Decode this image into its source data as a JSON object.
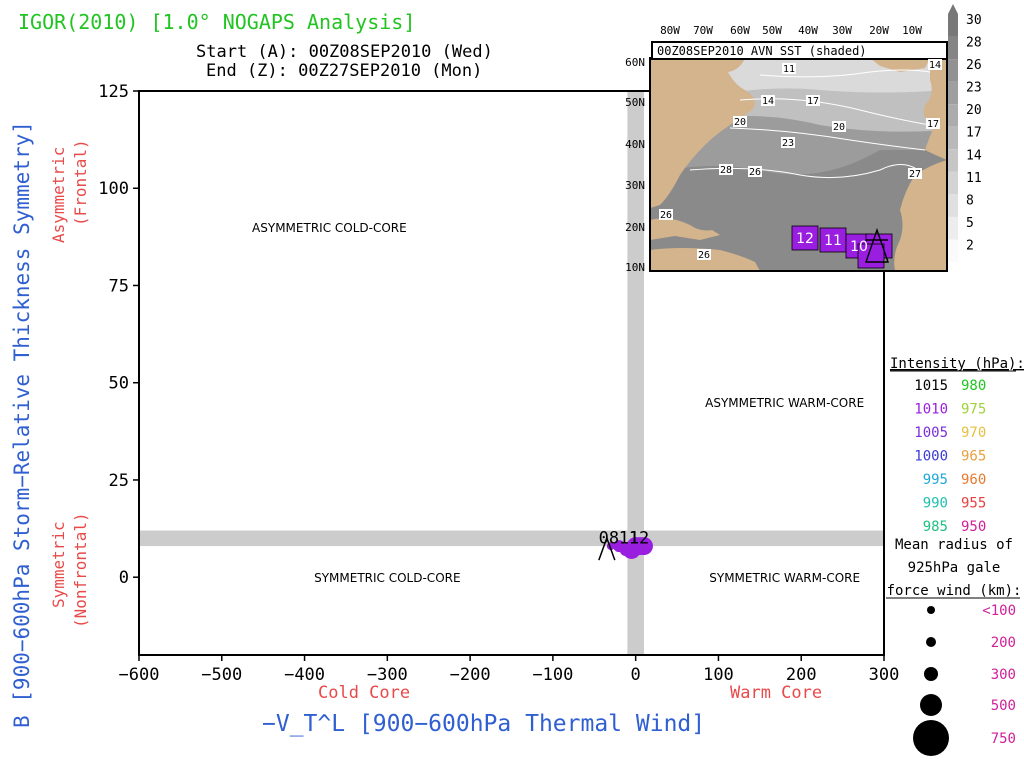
{
  "title": {
    "main": "IGOR(2010) [1.0° NOGAPS Analysis]",
    "start": "Start (A): 00Z08SEP2010 (Wed)",
    "end": "End (Z): 00Z27SEP2010 (Mon)"
  },
  "colors": {
    "title": "#22c422",
    "axis_label": "#2f5fd0",
    "sub_label": "#e84a4a",
    "track": "#9a1ee0",
    "band": "#cccccc"
  },
  "chart_data": {
    "type": "scatter",
    "xlabel": "−V_T^L [900−600hPa Thermal Wind]",
    "ylabel": "B [900−600hPa Storm−Relative Thickness Symmetry]",
    "xlim": [
      -600,
      300
    ],
    "ylim": [
      -20,
      125
    ],
    "x_ticks": [
      -600,
      -500,
      -400,
      -300,
      -200,
      -100,
      0,
      100,
      200,
      300
    ],
    "x_tick_labels": [
      "−600",
      "−500",
      "−400",
      "−300",
      "−200",
      "−100",
      "0",
      "100",
      "200",
      "300"
    ],
    "y_ticks": [
      0,
      25,
      50,
      75,
      100,
      125
    ],
    "y_tick_labels": [
      "0",
      "25",
      "50",
      "75",
      "100",
      "125"
    ],
    "sub_labels": {
      "x_left": "Cold Core",
      "x_right": "Warm Core",
      "y_top": [
        "Asymmetric",
        "(Frontal)"
      ],
      "y_bottom": [
        "Symmetric",
        "(Nonfrontal)"
      ]
    },
    "quadrant_labels": [
      {
        "text": "ASYMMETRIC COLD-CORE",
        "x": -370,
        "y": 90
      },
      {
        "text": "ASYMMETRIC WARM-CORE",
        "x": 180,
        "y": 45
      },
      {
        "text": "SYMMETRIC COLD-CORE",
        "x": -300,
        "y": 0
      },
      {
        "text": "SYMMETRIC WARM-CORE",
        "x": 180,
        "y": 0
      }
    ],
    "band_x": [
      -10,
      10
    ],
    "band_y": [
      8,
      12
    ],
    "point_labels": [
      "08",
      "11",
      "12"
    ],
    "points": [
      {
        "x": -30,
        "y": 8,
        "size": 1
      },
      {
        "x": -20,
        "y": 8,
        "size": 2
      },
      {
        "x": -12,
        "y": 7,
        "size": 2
      },
      {
        "x": -5,
        "y": 7,
        "size": 3
      },
      {
        "x": 0,
        "y": 8,
        "size": 3
      },
      {
        "x": 5,
        "y": 8,
        "size": 3
      },
      {
        "x": 10,
        "y": 8,
        "size": 3
      }
    ]
  },
  "inset": {
    "header": "00Z08SEP2010 AVN SST (shaded)",
    "lon_labels": [
      "80W",
      "70W",
      "60W",
      "50W",
      "40W",
      "30W",
      "20W",
      "10W"
    ],
    "lat_labels": [
      "60N",
      "50N",
      "40N",
      "30N",
      "20N",
      "10N"
    ],
    "contour_labels": [
      "11",
      "14",
      "17",
      "20",
      "17",
      "20",
      "23",
      "26",
      "28",
      "26",
      "14",
      "27",
      "26"
    ],
    "track_labels": [
      "12",
      "11",
      "10"
    ],
    "colorbar_labels": [
      "30",
      "28",
      "26",
      "23",
      "20",
      "17",
      "14",
      "11",
      "8",
      "5",
      "2"
    ],
    "land_color": "#d3b48c"
  },
  "legend": {
    "intensity_title": "Intensity (hPa):",
    "intensity": [
      {
        "left": "1015",
        "left_color": "#000000",
        "right": "980",
        "right_color": "#22c422"
      },
      {
        "left": "1010",
        "left_color": "#9a1ee0",
        "right": "975",
        "right_color": "#a0d23c"
      },
      {
        "left": "1005",
        "left_color": "#7b2fd8",
        "right": "970",
        "right_color": "#e8c040"
      },
      {
        "left": "1000",
        "left_color": "#3b3bd8",
        "right": "965",
        "right_color": "#e8a040"
      },
      {
        "left": "995",
        "left_color": "#20a8d8",
        "right": "960",
        "right_color": "#e87a30"
      },
      {
        "left": "990",
        "left_color": "#20c0b0",
        "right": "955",
        "right_color": "#e84040"
      },
      {
        "left": "985",
        "left_color": "#20c080",
        "right": "950",
        "right_color": "#d0209a"
      }
    ],
    "radius_title": [
      "Mean radius of",
      "925hPa gale",
      "force wind (km):"
    ],
    "radius": [
      {
        "label": "<100"
      },
      {
        "label": "200"
      },
      {
        "label": "300"
      },
      {
        "label": "500"
      },
      {
        "label": "750"
      }
    ],
    "radius_color": "#d0209a"
  }
}
